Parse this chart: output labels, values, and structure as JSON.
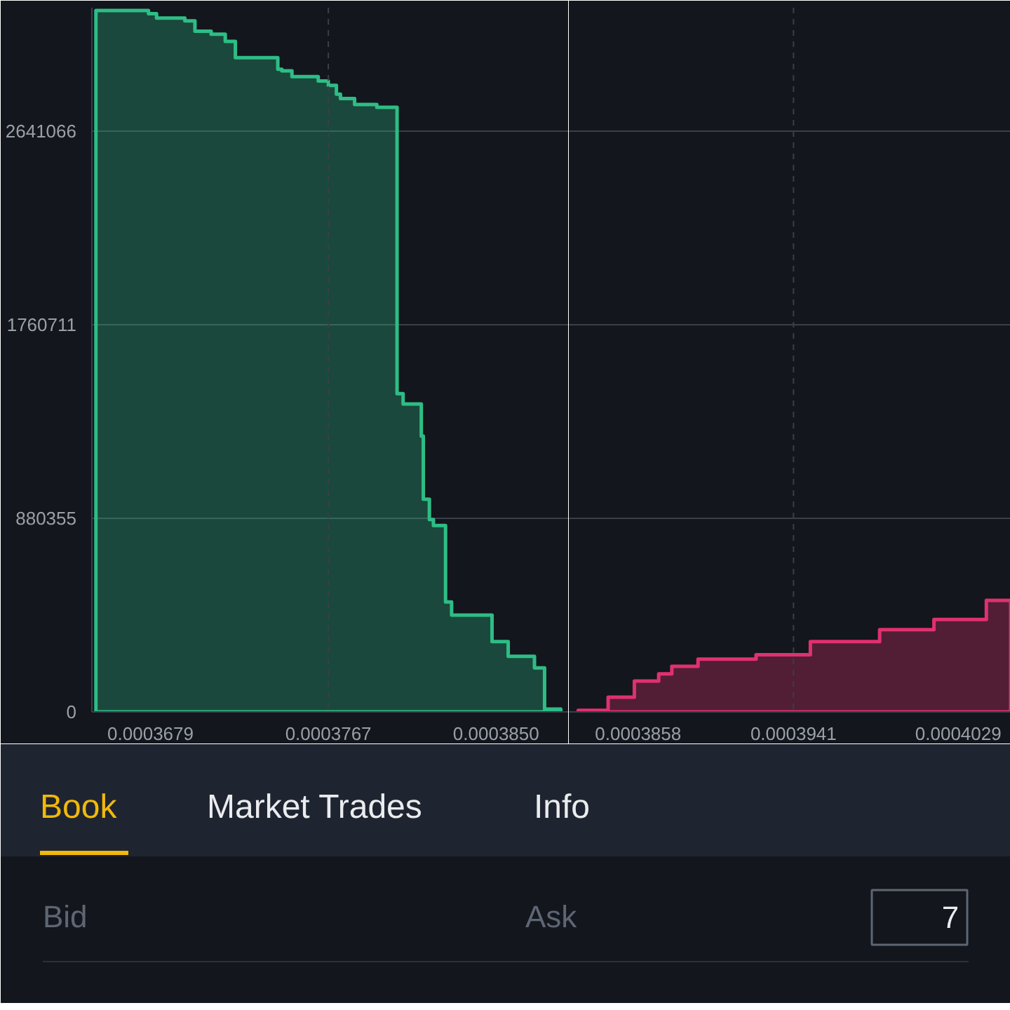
{
  "chart_data": [
    {
      "type": "area",
      "xlim": [
        0.000365,
        0.0003886
      ],
      "ylim": [
        0,
        3201000
      ],
      "xticks": [
        0.0003679,
        0.0003767,
        {
          "value": 0.000385,
          "label": "0.0003850"
        }
      ],
      "yticks": [
        0,
        880355,
        1760711,
        2641066
      ],
      "grid": "y",
      "ref_lines": [
        {
          "axis": "x",
          "value": 0.0003767,
          "line_style": "dashed"
        }
      ],
      "series": [
        {
          "color": "#2ebd85",
          "x": [
            0.0003652,
            0.0003678,
            0.0003682,
            0.0003696,
            0.0003701,
            0.0003709,
            0.0003716,
            0.0003721,
            0.0003742,
            0.0003744,
            0.0003749,
            0.0003762,
            0.0003767,
            0.0003771,
            0.0003773,
            0.000378,
            0.0003791,
            0.0003801,
            0.0003804,
            0.0003813,
            0.0003814,
            0.0003817,
            0.0003819,
            0.0003825,
            0.0003828,
            0.0003848,
            0.0003856,
            0.0003869,
            0.0003874,
            0.0003882
          ],
          "values": [
            3188000,
            3174000,
            3154000,
            3141000,
            3094000,
            3081000,
            3048000,
            2974000,
            2921000,
            2914000,
            2888000,
            2868000,
            2848000,
            2808000,
            2788000,
            2761000,
            2748000,
            1447000,
            1400000,
            1254000,
            967000,
            874000,
            847000,
            500000,
            440000,
            320000,
            253000,
            200000,
            13000,
            13000
          ]
        }
      ]
    },
    {
      "type": "area",
      "xlim": [
        0.0003821,
        0.0004057
      ],
      "ylim": [
        0,
        3201000
      ],
      "xticks": [
        0.0003858,
        0.0003941,
        0.0004029
      ],
      "yticks": [
        0,
        880355,
        1760711,
        2641066
      ],
      "grid": "y",
      "tick_labels": "x",
      "ref_lines": [
        {
          "axis": "x",
          "value": 0.0003941,
          "line_style": "dashed"
        }
      ],
      "series": [
        {
          "color": "#e0316f",
          "x": [
            0.0003826,
            0.0003842,
            0.0003856,
            0.0003869,
            0.0003876,
            0.000389,
            0.0003921,
            0.000395,
            0.0003987,
            0.0004016,
            0.0004044,
            0.0004057
          ],
          "values": [
            7000,
            67000,
            140000,
            173000,
            207000,
            240000,
            260000,
            320000,
            374000,
            420000,
            507000,
            507000
          ]
        }
      ]
    },
    {
      "type": "other",
      "annotations": [
        "Book",
        "Market Trades",
        "Info",
        "Bid",
        "Ask",
        "7"
      ]
    }
  ]
}
